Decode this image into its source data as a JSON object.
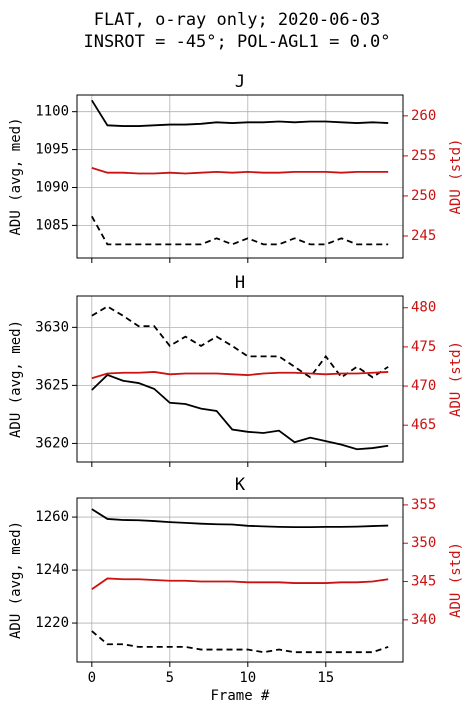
{
  "suptitle": [
    "FLAT, o-ray only; 2020-06-03",
    "INSROT = -45°; POL-AGL1 = 0.0°"
  ],
  "chart_data": [
    {
      "type": "line",
      "title": "J",
      "ylabel": "ADU (avg, med)",
      "y2label": "ADU (std)",
      "y2color": "#cc1111",
      "grid": true,
      "xlim": [
        -0.95,
        19.95
      ],
      "xticks": [
        0,
        5,
        10,
        15
      ],
      "ylim": [
        1080.7,
        1102.2
      ],
      "yticks": [
        1085,
        1090,
        1095,
        1100
      ],
      "y2lim": [
        242.25,
        262.6
      ],
      "y2ticks": [
        245,
        250,
        255,
        260
      ],
      "x": [
        0,
        1,
        2,
        3,
        4,
        5,
        6,
        7,
        8,
        9,
        10,
        11,
        12,
        13,
        14,
        15,
        16,
        17,
        18,
        19
      ],
      "series": [
        {
          "color": "#000000",
          "linestyle": "solid",
          "values": [
            1101.5,
            1098.2,
            1098.1,
            1098.1,
            1098.2,
            1098.3,
            1098.3,
            1098.4,
            1098.6,
            1098.5,
            1098.6,
            1098.6,
            1098.7,
            1098.6,
            1098.7,
            1098.7,
            1098.6,
            1098.5,
            1098.6,
            1098.5
          ]
        },
        {
          "color": "#000000",
          "linestyle": "dashed",
          "values": [
            1086.2,
            1082.5,
            1082.5,
            1082.5,
            1082.5,
            1082.5,
            1082.5,
            1082.5,
            1083.3,
            1082.5,
            1083.3,
            1082.5,
            1082.5,
            1083.3,
            1082.5,
            1082.5,
            1083.3,
            1082.5,
            1082.5,
            1082.5
          ]
        },
        {
          "color": "#cc1111",
          "linestyle": "solid",
          "axis": "y2",
          "values": [
            253.5,
            252.9,
            252.9,
            252.8,
            252.8,
            252.9,
            252.8,
            252.9,
            253.0,
            252.9,
            253.0,
            252.9,
            252.9,
            253.0,
            253.0,
            253.0,
            252.9,
            253.0,
            253.0,
            253.0
          ]
        }
      ]
    },
    {
      "type": "line",
      "title": "H",
      "ylabel": "ADU (avg, med)",
      "y2label": "ADU (std)",
      "y2color": "#cc1111",
      "grid": true,
      "xlim": [
        -0.95,
        19.95
      ],
      "xticks": [
        0,
        5,
        10,
        15
      ],
      "ylim": [
        3618.4,
        3632.7
      ],
      "yticks": [
        3620,
        3625,
        3630
      ],
      "y2lim": [
        460.3,
        481.5
      ],
      "y2ticks": [
        465,
        470,
        475,
        480
      ],
      "x": [
        0,
        1,
        2,
        3,
        4,
        5,
        6,
        7,
        8,
        9,
        10,
        11,
        12,
        13,
        14,
        15,
        16,
        17,
        18,
        19
      ],
      "series": [
        {
          "color": "#000000",
          "linestyle": "solid",
          "values": [
            3624.6,
            3625.9,
            3625.4,
            3625.2,
            3624.7,
            3623.5,
            3623.4,
            3623.0,
            3622.8,
            3621.2,
            3621.0,
            3620.9,
            3621.1,
            3620.1,
            3620.5,
            3620.2,
            3619.9,
            3619.5,
            3619.6,
            3619.8
          ]
        },
        {
          "color": "#000000",
          "linestyle": "dashed",
          "values": [
            3631.0,
            3631.8,
            3631.0,
            3630.1,
            3630.1,
            3628.4,
            3629.2,
            3628.4,
            3629.2,
            3628.4,
            3627.5,
            3627.5,
            3627.5,
            3626.6,
            3625.7,
            3627.5,
            3625.7,
            3626.6,
            3625.7,
            3626.6
          ]
        },
        {
          "color": "#cc1111",
          "linestyle": "solid",
          "axis": "y2",
          "values": [
            471.0,
            471.6,
            471.7,
            471.7,
            471.8,
            471.5,
            471.6,
            471.6,
            471.6,
            471.5,
            471.4,
            471.6,
            471.7,
            471.7,
            471.6,
            471.5,
            471.6,
            471.6,
            471.7,
            471.8
          ]
        }
      ]
    },
    {
      "type": "line",
      "title": "K",
      "ylabel": "ADU (avg, med)",
      "y2label": "ADU (std)",
      "y2color": "#cc1111",
      "grid": true,
      "xlabel": "Frame #",
      "xlim": [
        -0.95,
        19.95
      ],
      "xticks": [
        0,
        5,
        10,
        15
      ],
      "ylim": [
        1205.3,
        1267.2
      ],
      "yticks": [
        1220,
        1240,
        1260
      ],
      "y2lim": [
        334.5,
        355.9
      ],
      "y2ticks": [
        340,
        345,
        350,
        355
      ],
      "x": [
        0,
        1,
        2,
        3,
        4,
        5,
        6,
        7,
        8,
        9,
        10,
        11,
        12,
        13,
        14,
        15,
        16,
        17,
        18,
        19
      ],
      "series": [
        {
          "color": "#000000",
          "linestyle": "solid",
          "values": [
            1263.0,
            1259.3,
            1258.9,
            1258.8,
            1258.5,
            1258.1,
            1257.8,
            1257.5,
            1257.3,
            1257.2,
            1256.7,
            1256.5,
            1256.3,
            1256.2,
            1256.2,
            1256.3,
            1256.3,
            1256.4,
            1256.6,
            1256.8
          ]
        },
        {
          "color": "#000000",
          "linestyle": "dashed",
          "values": [
            1217,
            1212,
            1212,
            1211,
            1211,
            1211,
            1211,
            1210,
            1210,
            1210,
            1210,
            1209,
            1210,
            1209,
            1209,
            1209,
            1209,
            1209,
            1209,
            1211
          ]
        },
        {
          "color": "#cc1111",
          "linestyle": "solid",
          "axis": "y2",
          "values": [
            344.0,
            345.4,
            345.3,
            345.3,
            345.2,
            345.1,
            345.1,
            345.0,
            345.0,
            345.0,
            344.9,
            344.9,
            344.9,
            344.8,
            344.8,
            344.8,
            344.9,
            344.9,
            345.0,
            345.3
          ]
        }
      ]
    }
  ]
}
